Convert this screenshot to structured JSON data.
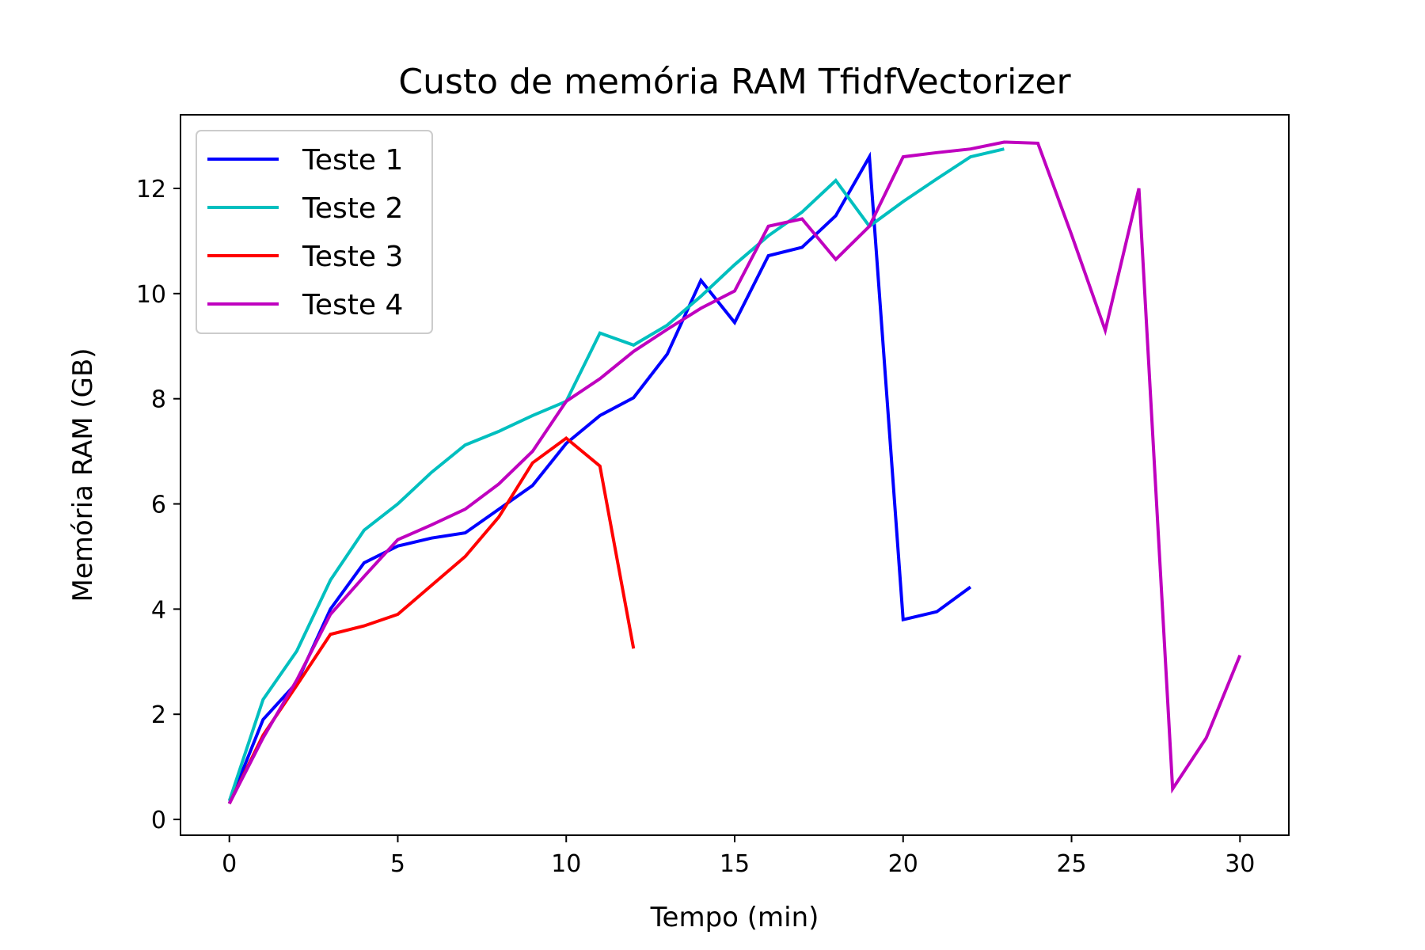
{
  "chart_data": {
    "type": "line",
    "title": "Custo de memória RAM TfidfVectorizer",
    "xlabel": "Tempo (min)",
    "ylabel": "Memória RAM (GB)",
    "xlim": [
      -1.45,
      31.45
    ],
    "ylim": [
      -0.3,
      13.4
    ],
    "xticks": [
      0,
      5,
      10,
      15,
      20,
      25,
      30
    ],
    "yticks": [
      0,
      2,
      4,
      6,
      8,
      10,
      12
    ],
    "grid": false,
    "legend_position": "top-left",
    "series": [
      {
        "name": "Teste 1",
        "color": "#0000ff",
        "x": [
          0,
          1,
          2,
          3,
          4,
          5,
          6,
          7,
          8,
          9,
          10,
          11,
          12,
          13,
          14,
          15,
          16,
          17,
          18,
          19,
          20,
          21,
          22
        ],
        "y": [
          0.3,
          1.9,
          2.6,
          4.0,
          4.88,
          5.2,
          5.35,
          5.45,
          5.9,
          6.35,
          7.15,
          7.68,
          8.02,
          8.85,
          10.25,
          9.45,
          10.72,
          10.88,
          11.48,
          12.6,
          3.8,
          3.95,
          4.42
        ]
      },
      {
        "name": "Teste 2",
        "color": "#00bfbf",
        "x": [
          0,
          1,
          2,
          3,
          4,
          5,
          6,
          7,
          8,
          9,
          10,
          11,
          12,
          13,
          14,
          15,
          16,
          17,
          18,
          19,
          20,
          21,
          22,
          23
        ],
        "y": [
          0.35,
          2.28,
          3.2,
          4.55,
          5.5,
          6.0,
          6.6,
          7.12,
          7.38,
          7.68,
          7.95,
          9.25,
          9.02,
          9.4,
          9.95,
          10.55,
          11.1,
          11.55,
          12.15,
          11.28,
          11.75,
          12.18,
          12.6,
          12.75
        ]
      },
      {
        "name": "Teste 3",
        "color": "#ff0000",
        "x": [
          0,
          1,
          2,
          3,
          4,
          5,
          6,
          7,
          8,
          9,
          10,
          11,
          12
        ],
        "y": [
          0.3,
          1.6,
          2.55,
          3.52,
          3.68,
          3.9,
          4.45,
          5.0,
          5.75,
          6.78,
          7.25,
          6.72,
          3.25
        ]
      },
      {
        "name": "Teste 4",
        "color": "#bf00bf",
        "x": [
          0,
          1,
          2,
          3,
          4,
          5,
          6,
          7,
          8,
          9,
          10,
          11,
          12,
          13,
          14,
          15,
          16,
          17,
          18,
          19,
          20,
          21,
          22,
          23,
          24,
          25,
          26,
          27,
          28,
          29,
          30
        ],
        "y": [
          0.3,
          1.55,
          2.65,
          3.9,
          4.62,
          5.32,
          5.6,
          5.9,
          6.38,
          7.0,
          7.95,
          8.38,
          8.9,
          9.32,
          9.72,
          10.05,
          11.28,
          11.42,
          10.65,
          11.28,
          12.6,
          12.68,
          12.75,
          12.88,
          12.86,
          11.12,
          9.3,
          12.0,
          0.58,
          1.55,
          3.12
        ]
      }
    ]
  }
}
